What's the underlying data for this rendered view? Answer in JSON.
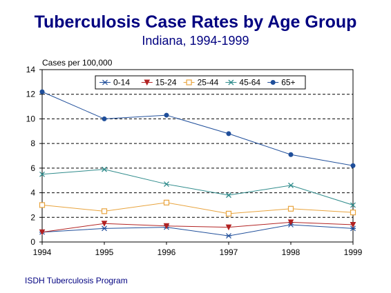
{
  "chart_data": {
    "type": "line",
    "title": "Tuberculosis Case Rates by Age Group",
    "subtitle": "Indiana, 1994-1999",
    "ylabel": "Cases per 100,000",
    "xlabel": "",
    "x": [
      1994,
      1995,
      1996,
      1997,
      1998,
      1999
    ],
    "x_tick_labels": [
      "1994",
      "1995",
      "1996",
      "1997",
      "1998",
      "1999"
    ],
    "ylim": [
      0,
      14
    ],
    "y_ticks": [
      0,
      2,
      4,
      6,
      8,
      10,
      12,
      14
    ],
    "y_tick_labels": [
      "0",
      "2",
      "4",
      "6",
      "8",
      "10",
      "12",
      "14"
    ],
    "grid": "horizontal dashed",
    "legend_position": "top",
    "series": [
      {
        "name": "0-14",
        "color": "#1F4E9A",
        "marker": "star",
        "values": [
          0.8,
          1.1,
          1.2,
          0.5,
          1.4,
          1.1
        ]
      },
      {
        "name": "15-24",
        "color": "#B22222",
        "marker": "triangle",
        "values": [
          0.8,
          1.5,
          1.3,
          1.2,
          1.6,
          1.4
        ]
      },
      {
        "name": "25-44",
        "color": "#E8A33C",
        "marker": "square",
        "values": [
          3.0,
          2.5,
          3.2,
          2.3,
          2.7,
          2.4
        ]
      },
      {
        "name": "45-64",
        "color": "#2E8B8B",
        "marker": "x",
        "values": [
          5.5,
          5.9,
          4.7,
          3.8,
          4.6,
          3.0
        ]
      },
      {
        "name": "65+",
        "color": "#1F4E9A",
        "marker": "circle",
        "values": [
          12.2,
          10.0,
          10.3,
          8.8,
          7.1,
          6.2
        ]
      }
    ]
  },
  "footer": {
    "source": "ISDH Tuberculosis Program"
  }
}
